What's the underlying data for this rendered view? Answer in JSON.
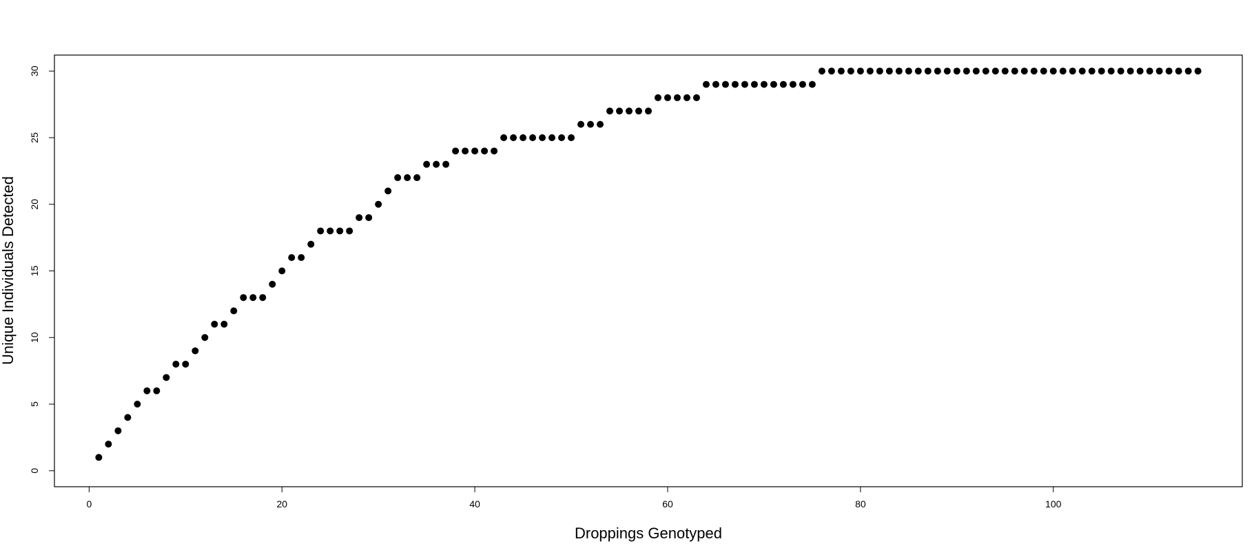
{
  "chart_data": {
    "type": "scatter",
    "title": "",
    "xlabel": "Droppings Genotyped",
    "ylabel": "Unique Individuals Detected",
    "xlim": [
      -3.6,
      119.6
    ],
    "ylim": [
      -1.2,
      31.2
    ],
    "xticks": [
      0,
      20,
      40,
      60,
      80,
      100
    ],
    "yticks": [
      0,
      5,
      10,
      15,
      20,
      25,
      30
    ],
    "grid": false,
    "marker_color": "#000000",
    "series": [
      {
        "x": [
          1,
          2,
          3,
          4,
          5,
          6,
          7,
          8,
          9,
          10,
          11,
          12,
          13,
          14,
          15,
          16,
          17,
          18,
          19,
          20,
          21,
          22,
          23,
          24,
          25,
          26,
          27,
          28,
          29,
          30,
          31,
          32,
          33,
          34,
          35,
          36,
          37,
          38,
          39,
          40,
          41,
          42,
          43,
          44,
          45,
          46,
          47,
          48,
          49,
          50,
          51,
          52,
          53,
          54,
          55,
          56,
          57,
          58,
          59,
          60,
          61,
          62,
          63,
          64,
          65,
          66,
          67,
          68,
          69,
          70,
          71,
          72,
          73,
          74,
          75,
          76,
          77,
          78,
          79,
          80,
          81,
          82,
          83,
          84,
          85,
          86,
          87,
          88,
          89,
          90,
          91,
          92,
          93,
          94,
          95,
          96,
          97,
          98,
          99,
          100,
          101,
          102,
          103,
          104,
          105,
          106,
          107,
          108,
          109,
          110,
          111,
          112,
          113,
          114,
          115
        ],
        "y": [
          1,
          2,
          3,
          4,
          5,
          6,
          6,
          7,
          8,
          8,
          9,
          10,
          11,
          11,
          12,
          13,
          13,
          13,
          14,
          15,
          16,
          16,
          17,
          18,
          18,
          18,
          18,
          19,
          19,
          20,
          21,
          22,
          22,
          22,
          23,
          23,
          23,
          24,
          24,
          24,
          24,
          24,
          25,
          25,
          25,
          25,
          25,
          25,
          25,
          25,
          26,
          26,
          26,
          27,
          27,
          27,
          27,
          27,
          28,
          28,
          28,
          28,
          28,
          29,
          29,
          29,
          29,
          29,
          29,
          29,
          29,
          29,
          29,
          29,
          29,
          30,
          30,
          30,
          30,
          30,
          30,
          30,
          30,
          30,
          30,
          30,
          30,
          30,
          30,
          30,
          30,
          30,
          30,
          30,
          30,
          30,
          30,
          30,
          30,
          30,
          30,
          30,
          30,
          30,
          30,
          30,
          30,
          30,
          30,
          30,
          30,
          30,
          30,
          30,
          30
        ]
      }
    ]
  }
}
